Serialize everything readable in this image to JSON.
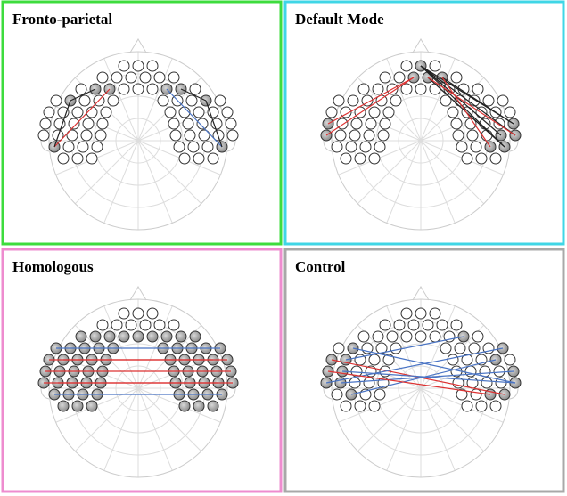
{
  "panels": [
    {
      "title": "Fronto-parietal"
    },
    {
      "title": "Default Mode"
    },
    {
      "title": "Homologous"
    },
    {
      "title": "Control"
    }
  ]
}
